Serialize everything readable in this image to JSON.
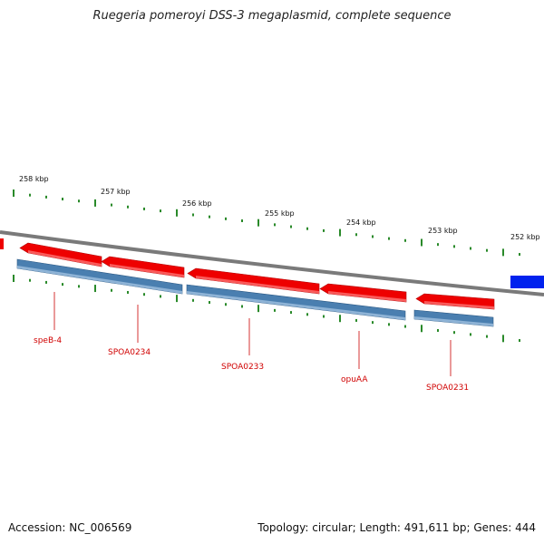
{
  "title": "Ruegeria pomeroyi DSS-3 megaplasmid, complete sequence",
  "footer": {
    "accession": "Accession: NC_006569",
    "summary": "Topology: circular; Length: 491,611 bp; Genes: 444"
  },
  "colors": {
    "backbone": "#7a7a7a",
    "forward_gene": "#ee0000",
    "reverse_cds": "#4a7fb0",
    "blue_feature": "#0022ee",
    "tick": "#2a8a2a",
    "gene_label": "#cc0000"
  },
  "kbp_labels": [
    "258 kbp",
    "257 kbp",
    "256 kbp",
    "255 kbp",
    "254 kbp",
    "253 kbp",
    "252 kbp"
  ],
  "gene_labels": [
    "speB-4",
    "SPOA0234",
    "SPOA0233",
    "opuAA",
    "SPOA0231"
  ]
}
